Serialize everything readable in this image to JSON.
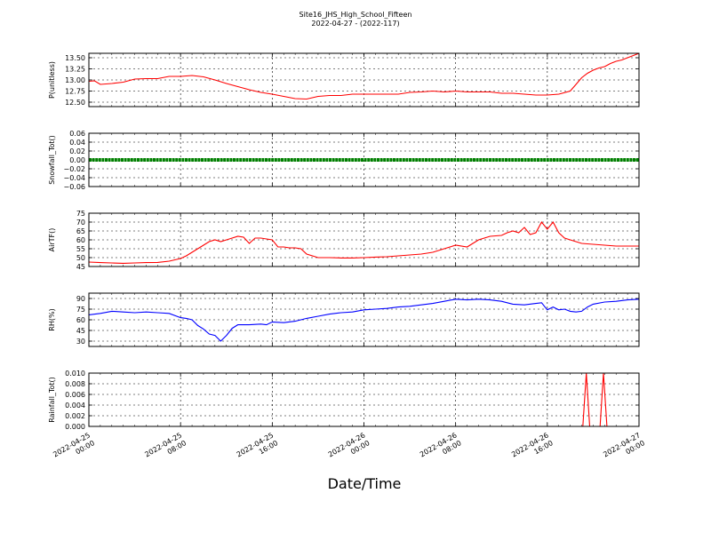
{
  "chart_data": {
    "title": "Site16_JHS_High_School_Fifteen",
    "subtitle": "2022-04-27 - (2022-117)",
    "xlabel": "Date/Time",
    "x_tick_labels": [
      [
        "2022-04-25",
        "00:00"
      ],
      [
        "2022-04-25",
        "08:00"
      ],
      [
        "2022-04-25",
        "16:00"
      ],
      [
        "2022-04-26",
        "00:00"
      ],
      [
        "2022-04-26",
        "08:00"
      ],
      [
        "2022-04-26",
        "16:00"
      ],
      [
        "2022-04-27",
        "00:00"
      ]
    ],
    "x_range_hours": [
      0,
      48
    ],
    "grid": true,
    "panels": [
      {
        "type": "line",
        "ylabel": "P(unitless)",
        "color": "#ff0000",
        "ylim": [
          12.4,
          13.6
        ],
        "yticks": [
          "12.50",
          "12.75",
          "13.00",
          "13.25",
          "13.50"
        ],
        "ytick_values": [
          12.5,
          12.75,
          13.0,
          13.25,
          13.5
        ],
        "x": [
          0,
          0.5,
          1,
          2,
          3,
          4,
          5,
          6,
          7,
          8,
          9,
          10,
          11,
          12,
          13,
          14,
          15,
          16,
          17,
          18,
          19,
          20,
          21,
          22,
          23,
          24,
          25,
          26,
          27,
          28,
          29,
          30,
          31,
          32,
          33,
          34,
          35,
          36,
          37,
          38,
          39,
          40,
          41,
          42,
          42.5,
          43,
          43.5,
          44,
          44.5,
          45,
          45.5,
          46,
          46.5,
          47,
          47.5,
          48
        ],
        "values": [
          12.97,
          12.98,
          12.9,
          12.92,
          12.95,
          13.02,
          13.03,
          13.03,
          13.08,
          13.08,
          13.1,
          13.07,
          13.0,
          12.92,
          12.85,
          12.78,
          12.72,
          12.68,
          12.63,
          12.58,
          12.57,
          12.63,
          12.65,
          12.65,
          12.68,
          12.68,
          12.68,
          12.68,
          12.68,
          12.72,
          12.73,
          12.75,
          12.73,
          12.75,
          12.73,
          12.73,
          12.73,
          12.7,
          12.7,
          12.68,
          12.66,
          12.66,
          12.68,
          12.75,
          12.9,
          13.05,
          13.15,
          13.22,
          13.27,
          13.3,
          13.37,
          13.42,
          13.45,
          13.5,
          13.55,
          13.6
        ]
      },
      {
        "type": "line",
        "ylabel": "Snowfall_Tot()",
        "color": "#008000",
        "thick": true,
        "ylim": [
          -0.06,
          0.06
        ],
        "yticks": [
          "0.06",
          "0.04",
          "0.02",
          "0.00",
          "−0.02",
          "−0.04",
          "−0.06"
        ],
        "ytick_values": [
          0.06,
          0.04,
          0.02,
          0.0,
          -0.02,
          -0.04,
          -0.06
        ],
        "x": [
          0,
          48
        ],
        "values": [
          0,
          0
        ]
      },
      {
        "type": "line",
        "ylabel": "AirTF()",
        "color": "#ff0000",
        "ylim": [
          45,
          75
        ],
        "yticks": [
          "75",
          "70",
          "65",
          "60",
          "55",
          "50",
          "45"
        ],
        "ytick_values": [
          75,
          70,
          65,
          60,
          55,
          50,
          45
        ],
        "x": [
          0,
          1,
          2,
          3,
          4,
          5,
          6,
          7,
          8,
          8.5,
          9,
          9.5,
          10,
          10.5,
          11,
          11.5,
          12,
          12.5,
          13,
          13.5,
          14,
          14.5,
          15,
          15.5,
          16,
          16.5,
          17,
          17.5,
          18,
          18.5,
          19,
          19.5,
          20,
          21,
          22,
          23,
          24,
          25,
          26,
          27,
          28,
          29,
          30,
          31,
          32,
          33,
          34,
          35,
          36,
          36.5,
          37,
          37.5,
          38,
          38.5,
          39,
          39.5,
          40,
          40.5,
          41,
          41.5,
          42,
          43,
          44,
          45,
          46,
          47,
          48
        ],
        "values": [
          47.5,
          47.2,
          47,
          46.8,
          47,
          47.2,
          47.3,
          48,
          49.5,
          51,
          53,
          55,
          57,
          59,
          60,
          59,
          60,
          61,
          62,
          61.5,
          58,
          61,
          61,
          60.5,
          60,
          56,
          56,
          55.5,
          55.5,
          55,
          52,
          51,
          50,
          50,
          49.8,
          49.8,
          50,
          50.3,
          50.5,
          51,
          51.5,
          52,
          53,
          55,
          57,
          56,
          60,
          62,
          62.5,
          64,
          65,
          64,
          67,
          63,
          64,
          70,
          66,
          70,
          64,
          61,
          60,
          58,
          57.5,
          57,
          56.5,
          56.5,
          56.5
        ]
      },
      {
        "type": "line",
        "ylabel": "RH(%)",
        "color": "#0000ff",
        "ylim": [
          22.5,
          97.5
        ],
        "yticks": [
          "90",
          "75",
          "60",
          "45",
          "30"
        ],
        "ytick_values": [
          90,
          75,
          60,
          45,
          30
        ],
        "x": [
          0,
          1,
          2,
          3,
          4,
          5,
          6,
          7,
          8,
          8.5,
          9,
          9.5,
          10,
          10.5,
          11,
          11.5,
          12,
          12.5,
          13,
          14,
          15,
          15.5,
          16,
          17,
          18,
          19,
          20,
          21,
          22,
          23,
          24,
          25,
          26,
          27,
          28,
          29,
          30,
          31,
          32,
          33,
          34,
          35,
          36,
          37,
          38,
          39,
          39.5,
          40,
          40.5,
          41,
          41.5,
          42,
          42.5,
          43,
          43.5,
          44,
          45,
          46,
          47,
          48
        ],
        "values": [
          67,
          69,
          72,
          71,
          70,
          71,
          70,
          69,
          63,
          62,
          60,
          52,
          47,
          40,
          38,
          30,
          38,
          48,
          53,
          53,
          54,
          53,
          57,
          56,
          58,
          62,
          65,
          68,
          70,
          71,
          74,
          75,
          76,
          78,
          79,
          81,
          83,
          86,
          89,
          88,
          89,
          88,
          86,
          82,
          81,
          83,
          84,
          74,
          78,
          74,
          75,
          72,
          71,
          72,
          78,
          82,
          85,
          86,
          88,
          89
        ]
      },
      {
        "type": "line",
        "ylabel": "Rainfall_Tot()",
        "color": "#ff0000",
        "ylim": [
          0,
          0.01
        ],
        "yticks": [
          "0.010",
          "0.008",
          "0.006",
          "0.004",
          "0.002",
          "0.000"
        ],
        "ytick_values": [
          0.01,
          0.008,
          0.006,
          0.004,
          0.002,
          0.0
        ],
        "x": [
          0,
          43.1,
          43.4,
          43.7,
          44.6,
          44.9,
          45.2,
          48
        ],
        "values": [
          0,
          0,
          0.01,
          0,
          0,
          0.01,
          0,
          0
        ]
      }
    ]
  }
}
